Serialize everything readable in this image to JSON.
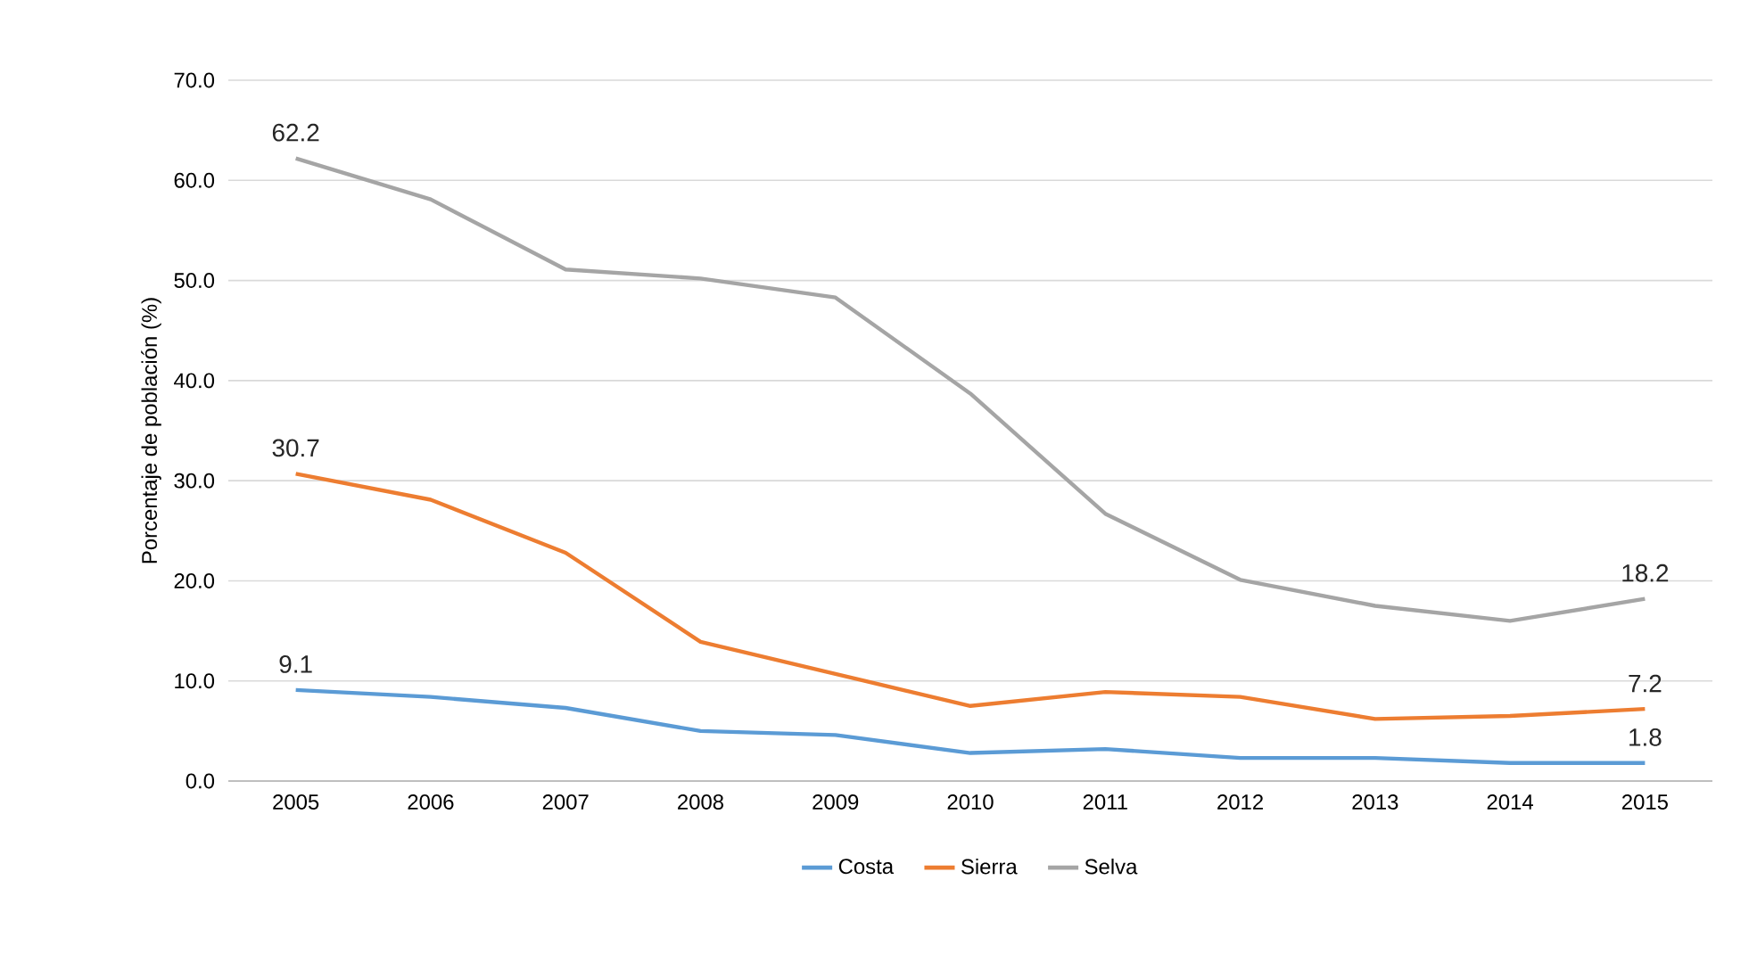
{
  "chart_data": {
    "type": "line",
    "ylabel": "Porcentaje de población (%)",
    "categories": [
      "2005",
      "2006",
      "2007",
      "2008",
      "2009",
      "2010",
      "2011",
      "2012",
      "2013",
      "2014",
      "2015"
    ],
    "series": [
      {
        "name": "Costa",
        "color": "#5b9bd5",
        "values": [
          9.1,
          8.4,
          7.3,
          5.0,
          4.6,
          2.8,
          3.2,
          2.3,
          2.3,
          1.8,
          1.8
        ],
        "value_labels": [
          "9.1",
          null,
          null,
          null,
          null,
          null,
          null,
          null,
          null,
          null,
          "1.8"
        ]
      },
      {
        "name": "Sierra",
        "color": "#ed7d31",
        "values": [
          30.7,
          28.1,
          22.8,
          13.9,
          10.7,
          7.5,
          8.9,
          8.4,
          6.2,
          6.5,
          7.2
        ],
        "value_labels": [
          "30.7",
          null,
          null,
          null,
          null,
          null,
          null,
          null,
          null,
          null,
          "7.2"
        ]
      },
      {
        "name": "Selva",
        "color": "#a5a5a5",
        "values": [
          62.2,
          58.1,
          51.1,
          50.2,
          48.3,
          38.7,
          26.7,
          20.1,
          17.5,
          16.0,
          18.2
        ],
        "value_labels": [
          "62.2",
          null,
          null,
          null,
          null,
          null,
          null,
          null,
          null,
          null,
          "18.2"
        ]
      }
    ],
    "ylim": [
      0,
      70
    ],
    "yticks": [
      {
        "value": 0,
        "label": "0.0"
      },
      {
        "value": 10,
        "label": "10.0"
      },
      {
        "value": 20,
        "label": "20.0"
      },
      {
        "value": 30,
        "label": "30.0"
      },
      {
        "value": 40,
        "label": "40.0"
      },
      {
        "value": 50,
        "label": "50.0"
      },
      {
        "value": 60,
        "label": "60.0"
      },
      {
        "value": 70,
        "label": "70.0"
      }
    ],
    "grid": "y",
    "legend": "bottom",
    "marker": "none",
    "line_style": "solid"
  }
}
